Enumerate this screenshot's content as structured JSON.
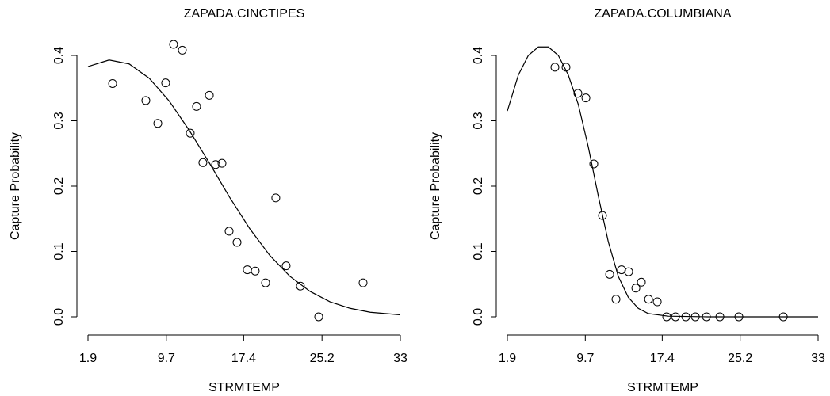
{
  "chart_data": [
    {
      "type": "scatter",
      "title": "ZAPADA.CINCTIPES",
      "xlabel": "STRMTEMP",
      "ylabel": "Capture Probability",
      "x": [
        4.35,
        7.66,
        8.85,
        9.63,
        10.42,
        11.29,
        12.08,
        12.71,
        13.34,
        13.98,
        14.61,
        15.24,
        15.95,
        16.74,
        17.76,
        18.55,
        19.58,
        20.6,
        21.63,
        23.05,
        24.87,
        29.29
      ],
      "values": [
        0.357,
        0.331,
        0.296,
        0.358,
        0.417,
        0.408,
        0.281,
        0.322,
        0.236,
        0.339,
        0.233,
        0.235,
        0.131,
        0.114,
        0.072,
        0.07,
        0.052,
        0.182,
        0.078,
        0.047,
        0.0,
        0.052
      ],
      "fit_x": [
        1.9,
        4,
        6,
        8,
        10,
        12,
        14,
        16,
        18,
        20,
        22,
        24,
        26,
        28,
        30,
        33
      ],
      "fit_values": [
        0.383,
        0.393,
        0.387,
        0.365,
        0.33,
        0.285,
        0.235,
        0.183,
        0.135,
        0.094,
        0.062,
        0.039,
        0.023,
        0.013,
        0.007,
        0.003
      ],
      "xlim": [
        1.9,
        33
      ],
      "ylim": [
        0,
        0.4
      ],
      "xticks": [
        1.9,
        9.7,
        17.4,
        25.2,
        33
      ],
      "yticks": [
        {
          "value": 0,
          "label": "0.0"
        },
        0.1,
        0.2,
        0.3,
        0.4
      ]
    },
    {
      "type": "scatter",
      "title": "ZAPADA.COLUMBIANA",
      "xlabel": "STRMTEMP",
      "ylabel": "Capture Probability",
      "x": [
        6.66,
        7.77,
        8.96,
        9.76,
        10.55,
        11.42,
        12.14,
        12.77,
        13.33,
        14.04,
        14.76,
        15.31,
        16.03,
        16.9,
        17.85,
        18.73,
        19.76,
        20.71,
        21.82,
        23.17,
        25.07,
        29.52
      ],
      "values": [
        0.382,
        0.382,
        0.342,
        0.335,
        0.234,
        0.155,
        0.065,
        0.027,
        0.072,
        0.069,
        0.044,
        0.053,
        0.027,
        0.023,
        0,
        0,
        0,
        0,
        0,
        0,
        0,
        0
      ],
      "fit_x": [
        1.9,
        3,
        4,
        5,
        6,
        7,
        8,
        9,
        10,
        11,
        12,
        13,
        14,
        15,
        16,
        18,
        22,
        33
      ],
      "fit_values": [
        0.315,
        0.37,
        0.4,
        0.413,
        0.413,
        0.4,
        0.37,
        0.325,
        0.26,
        0.185,
        0.115,
        0.062,
        0.03,
        0.013,
        0.005,
        0.001,
        0,
        0
      ],
      "xlim": [
        1.9,
        33
      ],
      "ylim": [
        0,
        0.4
      ],
      "xticks": [
        1.9,
        9.7,
        17.4,
        25.2,
        33
      ],
      "yticks": [
        {
          "value": 0,
          "label": "0.0"
        },
        0.1,
        0.2,
        0.3,
        0.4
      ]
    }
  ]
}
